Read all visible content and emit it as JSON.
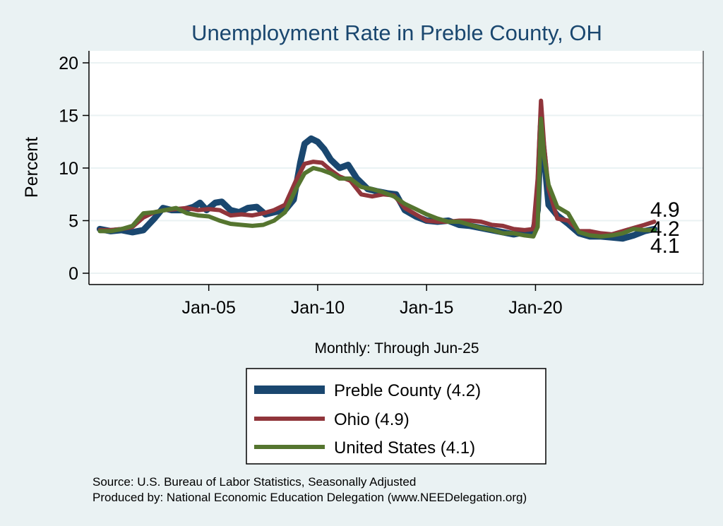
{
  "chart_data": {
    "type": "line",
    "title": "Unemployment Rate in Preble  County, OH",
    "ylabel": "Percent",
    "xlabel": "Monthly: Through Jun-25",
    "ylim": [
      0,
      20
    ],
    "xlim": [
      1999.5,
      2027.7
    ],
    "yticks": [
      0,
      5,
      10,
      15,
      20
    ],
    "xticks": [
      {
        "value": 2005,
        "label": "Jan-05"
      },
      {
        "value": 2010,
        "label": "Jan-10"
      },
      {
        "value": 2015,
        "label": "Jan-15"
      },
      {
        "value": 2020,
        "label": "Jan-20"
      }
    ],
    "grid": true,
    "legend_position": "bottom",
    "series": [
      {
        "name": "Preble  County (4.2)",
        "color": "#1a476f",
        "last_value": 4.2,
        "points": [
          [
            2000.0,
            4.2
          ],
          [
            2000.5,
            4.0
          ],
          [
            2001.0,
            4.1
          ],
          [
            2001.5,
            3.9
          ],
          [
            2002.0,
            4.1
          ],
          [
            2002.5,
            5.2
          ],
          [
            2002.9,
            6.2
          ],
          [
            2003.3,
            6.0
          ],
          [
            2003.8,
            6.0
          ],
          [
            2004.3,
            6.3
          ],
          [
            2004.6,
            6.7
          ],
          [
            2004.9,
            6.0
          ],
          [
            2005.3,
            6.7
          ],
          [
            2005.6,
            6.8
          ],
          [
            2006.0,
            6.0
          ],
          [
            2006.4,
            5.8
          ],
          [
            2006.8,
            6.2
          ],
          [
            2007.2,
            6.3
          ],
          [
            2007.6,
            5.6
          ],
          [
            2008.0,
            5.8
          ],
          [
            2008.5,
            6.0
          ],
          [
            2008.9,
            7.0
          ],
          [
            2009.2,
            10.5
          ],
          [
            2009.4,
            12.3
          ],
          [
            2009.7,
            12.8
          ],
          [
            2010.0,
            12.5
          ],
          [
            2010.3,
            11.8
          ],
          [
            2010.6,
            10.8
          ],
          [
            2011.0,
            10.0
          ],
          [
            2011.4,
            10.3
          ],
          [
            2011.8,
            9.0
          ],
          [
            2012.3,
            8.0
          ],
          [
            2012.7,
            7.8
          ],
          [
            2013.2,
            7.6
          ],
          [
            2013.6,
            7.5
          ],
          [
            2014.0,
            6.0
          ],
          [
            2014.5,
            5.4
          ],
          [
            2015.0,
            5.0
          ],
          [
            2015.5,
            4.9
          ],
          [
            2016.0,
            5.0
          ],
          [
            2016.5,
            4.6
          ],
          [
            2017.0,
            4.5
          ],
          [
            2017.5,
            4.3
          ],
          [
            2018.0,
            4.1
          ],
          [
            2018.5,
            3.9
          ],
          [
            2019.0,
            3.7
          ],
          [
            2019.5,
            3.9
          ],
          [
            2019.9,
            4.0
          ],
          [
            2020.1,
            6.0
          ],
          [
            2020.25,
            14.0
          ],
          [
            2020.4,
            11.0
          ],
          [
            2020.6,
            6.5
          ],
          [
            2021.0,
            5.5
          ],
          [
            2021.5,
            4.7
          ],
          [
            2022.0,
            3.8
          ],
          [
            2022.5,
            3.5
          ],
          [
            2023.0,
            3.5
          ],
          [
            2023.5,
            3.4
          ],
          [
            2024.0,
            3.3
          ],
          [
            2024.5,
            3.6
          ],
          [
            2025.0,
            4.0
          ],
          [
            2025.45,
            4.2
          ]
        ]
      },
      {
        "name": "Ohio (4.9)",
        "color": "#90353b",
        "last_value": 4.9,
        "points": [
          [
            2000.0,
            4.1
          ],
          [
            2000.5,
            4.1
          ],
          [
            2001.0,
            4.2
          ],
          [
            2001.5,
            4.4
          ],
          [
            2002.0,
            5.3
          ],
          [
            2002.5,
            5.8
          ],
          [
            2003.0,
            6.0
          ],
          [
            2003.5,
            6.1
          ],
          [
            2004.0,
            6.2
          ],
          [
            2004.5,
            6.0
          ],
          [
            2005.0,
            6.1
          ],
          [
            2005.5,
            6.0
          ],
          [
            2006.0,
            5.5
          ],
          [
            2006.5,
            5.6
          ],
          [
            2007.0,
            5.5
          ],
          [
            2007.5,
            5.7
          ],
          [
            2008.0,
            6.0
          ],
          [
            2008.5,
            6.5
          ],
          [
            2009.0,
            8.8
          ],
          [
            2009.4,
            10.4
          ],
          [
            2009.8,
            10.6
          ],
          [
            2010.2,
            10.5
          ],
          [
            2010.6,
            9.8
          ],
          [
            2011.0,
            9.2
          ],
          [
            2011.5,
            8.8
          ],
          [
            2012.0,
            7.5
          ],
          [
            2012.5,
            7.3
          ],
          [
            2013.0,
            7.5
          ],
          [
            2013.5,
            7.4
          ],
          [
            2014.0,
            6.2
          ],
          [
            2014.5,
            5.6
          ],
          [
            2015.0,
            5.0
          ],
          [
            2015.5,
            4.9
          ],
          [
            2016.0,
            4.9
          ],
          [
            2016.5,
            5.0
          ],
          [
            2017.0,
            5.0
          ],
          [
            2017.5,
            4.9
          ],
          [
            2018.0,
            4.6
          ],
          [
            2018.5,
            4.5
          ],
          [
            2019.0,
            4.2
          ],
          [
            2019.5,
            4.1
          ],
          [
            2019.9,
            4.2
          ],
          [
            2020.1,
            9.0
          ],
          [
            2020.25,
            16.4
          ],
          [
            2020.4,
            12.0
          ],
          [
            2020.6,
            8.0
          ],
          [
            2021.0,
            5.2
          ],
          [
            2021.5,
            5.0
          ],
          [
            2022.0,
            4.0
          ],
          [
            2022.5,
            4.0
          ],
          [
            2023.0,
            3.8
          ],
          [
            2023.5,
            3.7
          ],
          [
            2024.0,
            4.0
          ],
          [
            2024.5,
            4.3
          ],
          [
            2025.0,
            4.6
          ],
          [
            2025.45,
            4.9
          ]
        ]
      },
      {
        "name": "United States (4.1)",
        "color": "#55752f",
        "last_value": 4.1,
        "points": [
          [
            2000.0,
            4.0
          ],
          [
            2000.5,
            4.0
          ],
          [
            2001.0,
            4.2
          ],
          [
            2001.5,
            4.5
          ],
          [
            2002.0,
            5.7
          ],
          [
            2002.5,
            5.8
          ],
          [
            2003.0,
            6.0
          ],
          [
            2003.5,
            6.2
          ],
          [
            2004.0,
            5.7
          ],
          [
            2004.5,
            5.5
          ],
          [
            2005.0,
            5.4
          ],
          [
            2005.5,
            5.0
          ],
          [
            2006.0,
            4.7
          ],
          [
            2006.5,
            4.6
          ],
          [
            2007.0,
            4.5
          ],
          [
            2007.5,
            4.6
          ],
          [
            2008.0,
            5.0
          ],
          [
            2008.5,
            5.8
          ],
          [
            2009.0,
            8.0
          ],
          [
            2009.4,
            9.5
          ],
          [
            2009.8,
            10.0
          ],
          [
            2010.2,
            9.8
          ],
          [
            2010.6,
            9.5
          ],
          [
            2011.0,
            9.0
          ],
          [
            2011.5,
            9.0
          ],
          [
            2012.0,
            8.2
          ],
          [
            2012.5,
            8.0
          ],
          [
            2013.0,
            7.7
          ],
          [
            2013.5,
            7.3
          ],
          [
            2014.0,
            6.6
          ],
          [
            2014.5,
            6.1
          ],
          [
            2015.0,
            5.6
          ],
          [
            2015.5,
            5.2
          ],
          [
            2016.0,
            4.9
          ],
          [
            2016.5,
            4.9
          ],
          [
            2017.0,
            4.6
          ],
          [
            2017.5,
            4.3
          ],
          [
            2018.0,
            4.1
          ],
          [
            2018.5,
            3.8
          ],
          [
            2019.0,
            3.8
          ],
          [
            2019.5,
            3.6
          ],
          [
            2019.9,
            3.5
          ],
          [
            2020.1,
            4.4
          ],
          [
            2020.25,
            14.7
          ],
          [
            2020.4,
            11.0
          ],
          [
            2020.6,
            8.4
          ],
          [
            2021.0,
            6.3
          ],
          [
            2021.5,
            5.7
          ],
          [
            2022.0,
            3.9
          ],
          [
            2022.5,
            3.6
          ],
          [
            2023.0,
            3.5
          ],
          [
            2023.5,
            3.6
          ],
          [
            2024.0,
            3.8
          ],
          [
            2024.5,
            4.2
          ],
          [
            2025.0,
            4.1
          ],
          [
            2025.45,
            4.1
          ]
        ]
      }
    ],
    "end_labels": [
      {
        "text": "4.9"
      },
      {
        "text": "4.2"
      },
      {
        "text": "4.1"
      }
    ]
  },
  "legend": {
    "items": [
      {
        "label": "Preble  County (4.2)",
        "color": "#1a476f"
      },
      {
        "label": "Ohio (4.9)",
        "color": "#90353b"
      },
      {
        "label": "United States (4.1)",
        "color": "#55752f"
      }
    ]
  },
  "source": {
    "line1": "Source: U.S. Bureau of Labor Statistics, Seasonally Adjusted",
    "line2": "Produced by: National Economic Education Delegation (www.NEEDelegation.org)"
  }
}
